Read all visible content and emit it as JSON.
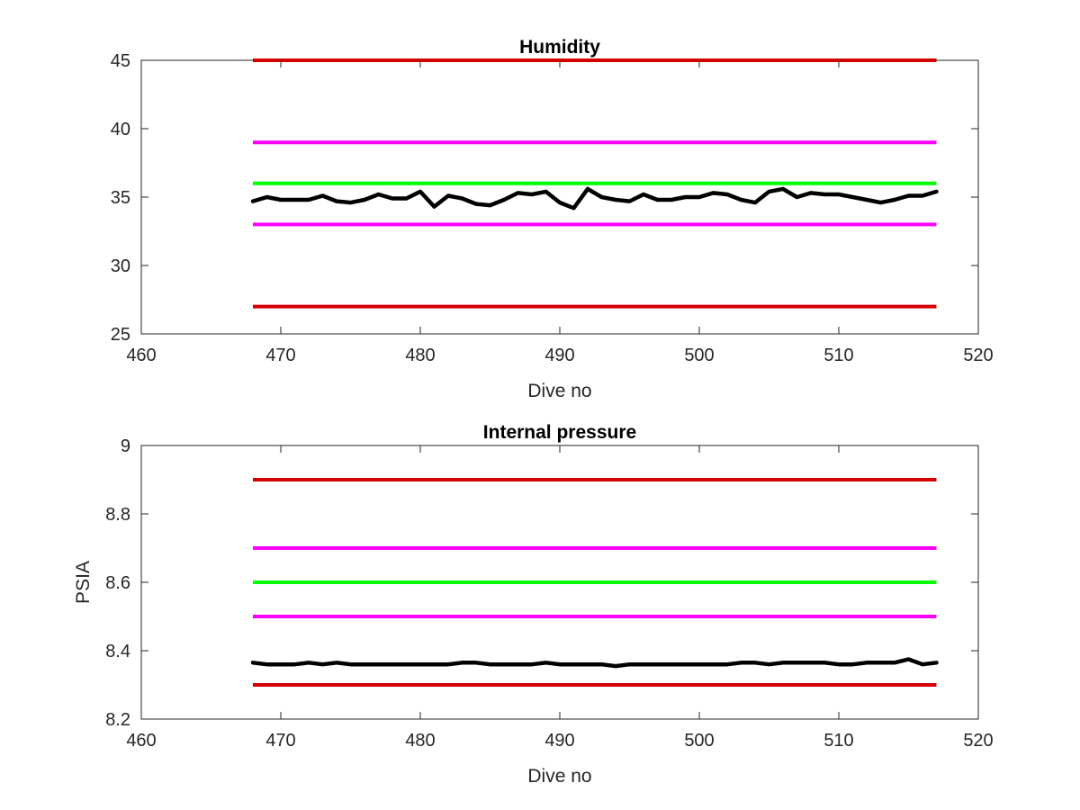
{
  "chart_data": [
    {
      "type": "line",
      "title": "Humidity",
      "xlabel": "Dive no",
      "ylabel": "",
      "xlim": [
        460,
        520
      ],
      "ylim": [
        25,
        45
      ],
      "xticks": [
        460,
        470,
        480,
        490,
        500,
        510,
        520
      ],
      "yticks": [
        25,
        30,
        35,
        40,
        45
      ],
      "grid": false,
      "series": [
        {
          "color": "#d40000",
          "x": [
            468,
            517
          ],
          "values": [
            45,
            45
          ]
        },
        {
          "color": "#ff00ff",
          "x": [
            468,
            517
          ],
          "values": [
            39,
            39
          ]
        },
        {
          "color": "#00ff00",
          "x": [
            468,
            517
          ],
          "values": [
            36,
            36
          ]
        },
        {
          "color": "#ff00ff",
          "x": [
            468,
            517
          ],
          "values": [
            33,
            33
          ]
        },
        {
          "color": "#d40000",
          "x": [
            468,
            517
          ],
          "values": [
            27,
            27
          ]
        },
        {
          "color": "#000000",
          "x": [
            468,
            469,
            470,
            471,
            472,
            473,
            474,
            475,
            476,
            477,
            478,
            479,
            480,
            481,
            482,
            483,
            484,
            485,
            486,
            487,
            488,
            489,
            490,
            491,
            492,
            493,
            494,
            495,
            496,
            497,
            498,
            499,
            500,
            501,
            502,
            503,
            504,
            505,
            506,
            507,
            508,
            509,
            510,
            511,
            512,
            513,
            514,
            515,
            516,
            517
          ],
          "values": [
            34.7,
            35.0,
            34.8,
            34.8,
            34.8,
            35.1,
            34.7,
            34.6,
            34.8,
            35.2,
            34.9,
            34.9,
            35.4,
            34.3,
            35.1,
            34.9,
            34.5,
            34.4,
            34.8,
            35.3,
            35.2,
            35.4,
            34.6,
            34.2,
            35.6,
            35.0,
            34.8,
            34.7,
            35.2,
            34.8,
            34.8,
            35.0,
            35.0,
            35.3,
            35.2,
            34.8,
            34.6,
            35.4,
            35.6,
            35.0,
            35.3,
            35.2,
            35.2,
            35.0,
            34.8,
            34.6,
            34.8,
            35.1,
            35.1,
            35.4
          ]
        }
      ]
    },
    {
      "type": "line",
      "title": "Internal pressure",
      "xlabel": "Dive no",
      "ylabel": "PSIA",
      "xlim": [
        460,
        520
      ],
      "ylim": [
        8.2,
        9.0
      ],
      "xticks": [
        460,
        470,
        480,
        490,
        500,
        510,
        520
      ],
      "yticks": [
        8.2,
        8.4,
        8.6,
        8.8,
        9.0
      ],
      "ytick_labels": [
        "8.2",
        "8.4",
        "8.6",
        "8.8",
        "9"
      ],
      "grid": false,
      "series": [
        {
          "color": "#d40000",
          "x": [
            468,
            517
          ],
          "values": [
            8.9,
            8.9
          ]
        },
        {
          "color": "#ff00ff",
          "x": [
            468,
            517
          ],
          "values": [
            8.7,
            8.7
          ]
        },
        {
          "color": "#00ff00",
          "x": [
            468,
            517
          ],
          "values": [
            8.6,
            8.6
          ]
        },
        {
          "color": "#ff00ff",
          "x": [
            468,
            517
          ],
          "values": [
            8.5,
            8.5
          ]
        },
        {
          "color": "#d40000",
          "x": [
            468,
            517
          ],
          "values": [
            8.3,
            8.3
          ]
        },
        {
          "color": "#000000",
          "x": [
            468,
            469,
            470,
            471,
            472,
            473,
            474,
            475,
            476,
            477,
            478,
            479,
            480,
            481,
            482,
            483,
            484,
            485,
            486,
            487,
            488,
            489,
            490,
            491,
            492,
            493,
            494,
            495,
            496,
            497,
            498,
            499,
            500,
            501,
            502,
            503,
            504,
            505,
            506,
            507,
            508,
            509,
            510,
            511,
            512,
            513,
            514,
            515,
            516,
            517
          ],
          "values": [
            8.365,
            8.36,
            8.36,
            8.36,
            8.365,
            8.36,
            8.365,
            8.36,
            8.36,
            8.36,
            8.36,
            8.36,
            8.36,
            8.36,
            8.36,
            8.365,
            8.365,
            8.36,
            8.36,
            8.36,
            8.36,
            8.365,
            8.36,
            8.36,
            8.36,
            8.36,
            8.355,
            8.36,
            8.36,
            8.36,
            8.36,
            8.36,
            8.36,
            8.36,
            8.36,
            8.365,
            8.365,
            8.36,
            8.365,
            8.365,
            8.365,
            8.365,
            8.36,
            8.36,
            8.365,
            8.365,
            8.365,
            8.375,
            8.36,
            8.365
          ]
        }
      ]
    }
  ]
}
